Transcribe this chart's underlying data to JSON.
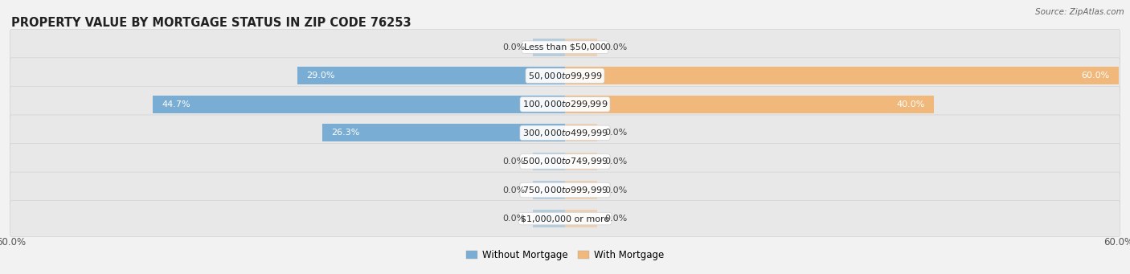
{
  "title": "PROPERTY VALUE BY MORTGAGE STATUS IN ZIP CODE 76253",
  "source": "Source: ZipAtlas.com",
  "categories": [
    "Less than $50,000",
    "$50,000 to $99,999",
    "$100,000 to $299,999",
    "$300,000 to $499,999",
    "$500,000 to $749,999",
    "$750,000 to $999,999",
    "$1,000,000 or more"
  ],
  "without_mortgage": [
    0.0,
    29.0,
    44.7,
    26.3,
    0.0,
    0.0,
    0.0
  ],
  "with_mortgage": [
    0.0,
    60.0,
    40.0,
    0.0,
    0.0,
    0.0,
    0.0
  ],
  "xlim": 60.0,
  "color_without": "#7aadd4",
  "color_with": "#f0b87a",
  "bar_height": 0.62,
  "bg_color": "#f2f2f2",
  "row_bg_even": "#ebebeb",
  "row_bg_odd": "#e2e2e2",
  "title_fontsize": 10.5,
  "label_fontsize": 8.0,
  "tick_fontsize": 8.5,
  "legend_fontsize": 8.5,
  "source_fontsize": 7.5,
  "stub_bar_size": 3.5
}
